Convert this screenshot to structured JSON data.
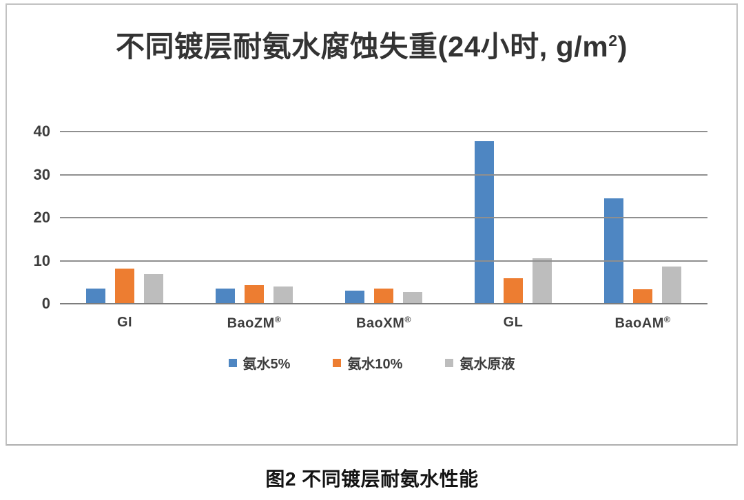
{
  "chart_data": {
    "type": "bar",
    "title": "不同镀层耐氨水腐蚀失重(24小时, g/m²)",
    "title_parts": {
      "main": "不同镀层耐氨水腐蚀失重(24小时, g/m",
      "sup": "2",
      "close": ")"
    },
    "categories": [
      "GI",
      "BaoZM®",
      "BaoXM®",
      "GL",
      "BaoAM®"
    ],
    "series": [
      {
        "name": "氨水5%",
        "color": "#4E86C2",
        "values": [
          3.6,
          3.5,
          3.0,
          37.8,
          24.5
        ]
      },
      {
        "name": "氨水10%",
        "color": "#ED7D31",
        "values": [
          8.2,
          4.3,
          3.5,
          6.0,
          3.4
        ]
      },
      {
        "name": "氨水原液",
        "color": "#BDBDBD",
        "values": [
          6.9,
          4.0,
          2.8,
          10.5,
          8.6
        ]
      }
    ],
    "yticks": [
      0,
      10,
      20,
      30,
      40
    ],
    "ylim": [
      0,
      40
    ],
    "xlabel": "",
    "ylabel": "",
    "grid": true,
    "legend_position": "bottom"
  },
  "caption": "图2 不同镀层耐氨水性能",
  "colors": {
    "series_blue": "#4E86C2",
    "series_orange": "#ED7D31",
    "series_gray": "#BDBDBD",
    "gridline": "#8f8f8f",
    "text": "#3d3d3d",
    "frame_border": "#c2c2c2"
  }
}
